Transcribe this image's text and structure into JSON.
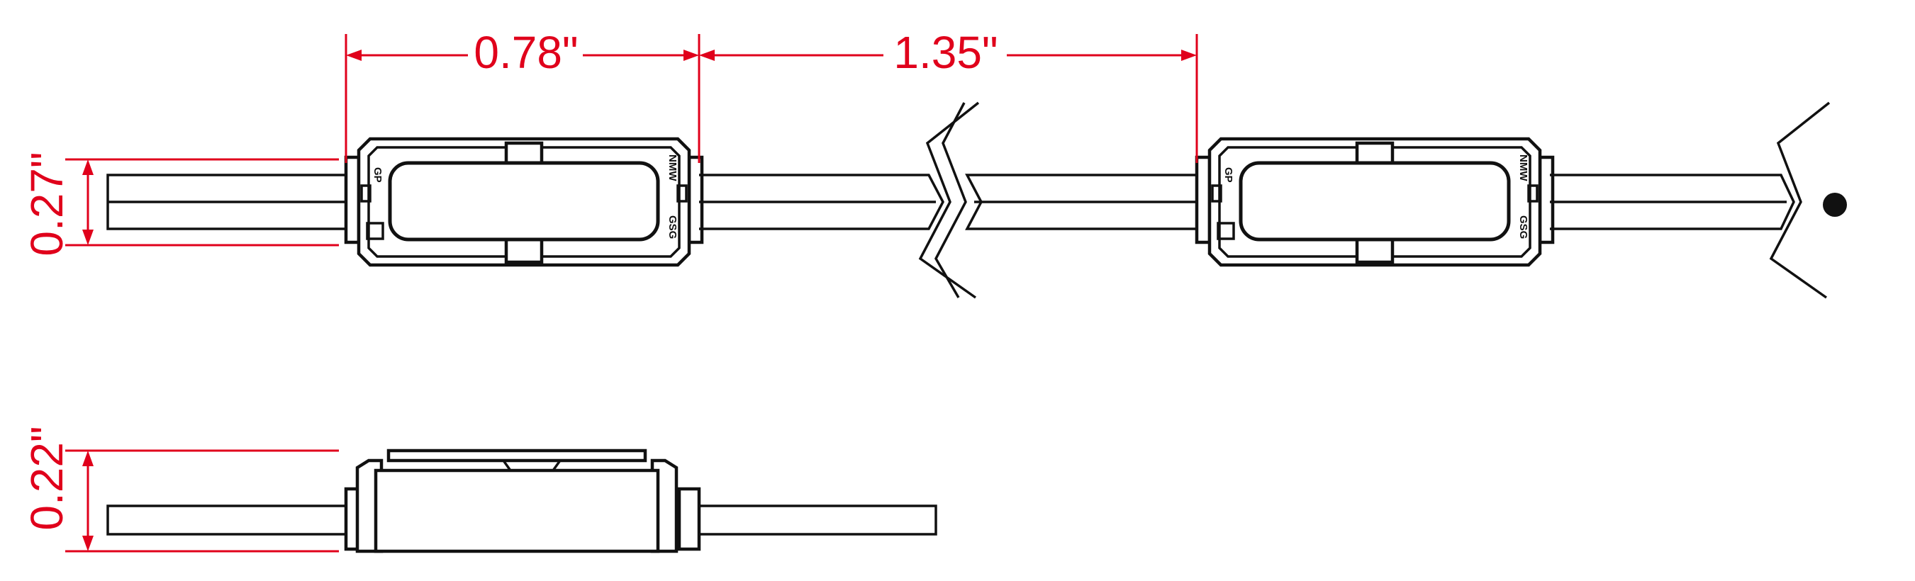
{
  "dimensions": {
    "module_length": "0.78\"",
    "module_spacing": "1.35\"",
    "module_width": "0.27\"",
    "module_height": "0.22\""
  },
  "module_markings": {
    "top_left": "GP",
    "top_right": "NMW",
    "bottom_right": "GSG"
  },
  "colors": {
    "dimension": "#e0001b",
    "outline": "#111111",
    "background": "#ffffff"
  }
}
